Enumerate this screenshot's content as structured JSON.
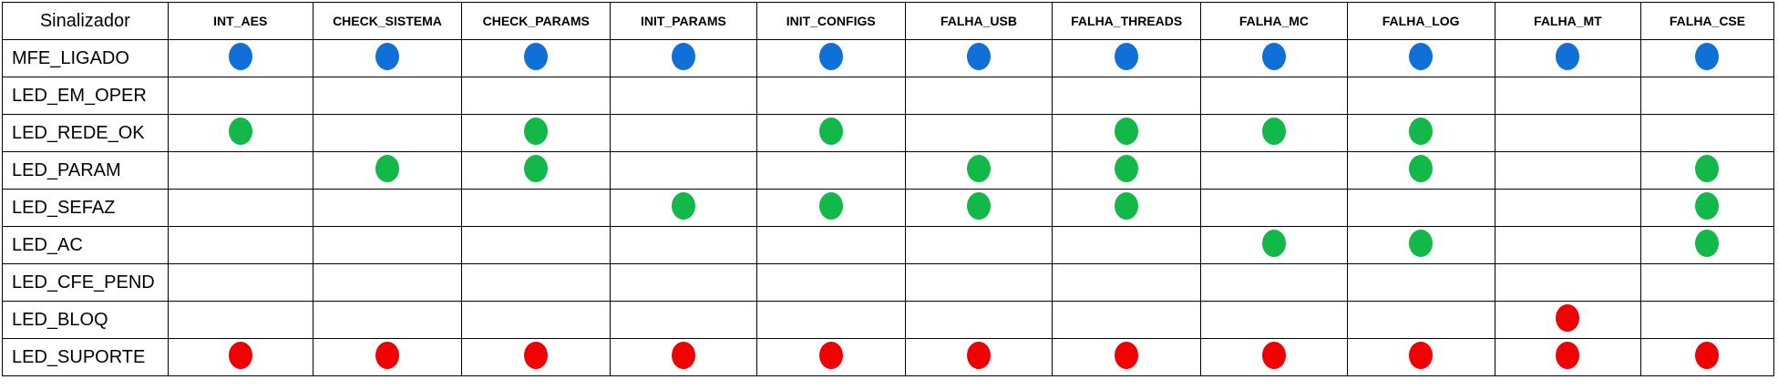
{
  "header": {
    "first": "Sinalizador",
    "columns": [
      "INT_AES",
      "CHECK_SISTEMA",
      "CHECK_PARAMS",
      "INIT_PARAMS",
      "INIT_CONFIGS",
      "FALHA_USB",
      "FALHA_THREADS",
      "FALHA_MC",
      "FALHA_LOG",
      "FALHA_MT",
      "FALHA_CSE"
    ]
  },
  "colors": {
    "blue": "#1070d8",
    "green": "#12b848",
    "red": "#f00000"
  },
  "rows": [
    {
      "label": "MFE_LIGADO",
      "color": "blue",
      "cells": [
        1,
        1,
        1,
        1,
        1,
        1,
        1,
        1,
        1,
        1,
        1
      ]
    },
    {
      "label": "LED_EM_OPER",
      "color": "",
      "cells": [
        0,
        0,
        0,
        0,
        0,
        0,
        0,
        0,
        0,
        0,
        0
      ]
    },
    {
      "label": "LED_REDE_OK",
      "color": "green",
      "cells": [
        1,
        0,
        1,
        0,
        1,
        0,
        1,
        1,
        1,
        0,
        0
      ]
    },
    {
      "label": "LED_PARAM",
      "color": "green",
      "cells": [
        0,
        1,
        1,
        0,
        0,
        1,
        1,
        0,
        1,
        0,
        1
      ]
    },
    {
      "label": "LED_SEFAZ",
      "color": "green",
      "cells": [
        0,
        0,
        0,
        1,
        1,
        1,
        1,
        0,
        0,
        0,
        1
      ]
    },
    {
      "label": "LED_AC",
      "color": "green",
      "cells": [
        0,
        0,
        0,
        0,
        0,
        0,
        0,
        1,
        1,
        0,
        1
      ]
    },
    {
      "label": "LED_CFE_PEND",
      "color": "",
      "cells": [
        0,
        0,
        0,
        0,
        0,
        0,
        0,
        0,
        0,
        0,
        0
      ]
    },
    {
      "label": "LED_BLOQ",
      "color": "red",
      "cells": [
        0,
        0,
        0,
        0,
        0,
        0,
        0,
        0,
        0,
        1,
        0
      ]
    },
    {
      "label": "LED_SUPORTE",
      "color": "red",
      "cells": [
        1,
        1,
        1,
        1,
        1,
        1,
        1,
        1,
        1,
        1,
        1
      ]
    }
  ]
}
